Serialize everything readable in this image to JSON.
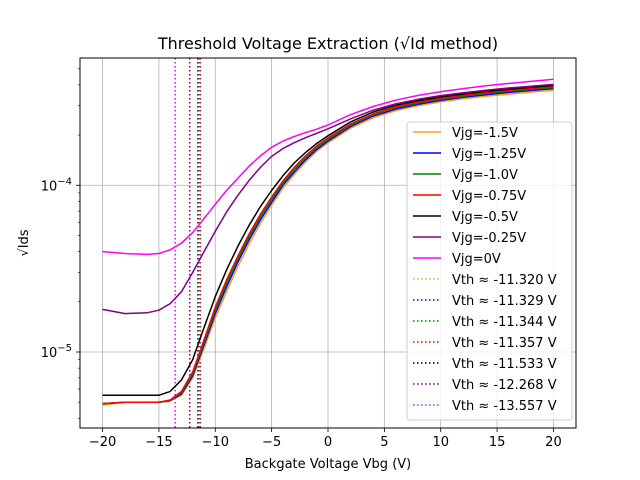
{
  "chart_data": {
    "type": "line",
    "title": "Threshold Voltage Extraction (√Id method)",
    "xlabel": "Backgate Voltage Vbg (V)",
    "ylabel": "√Ids",
    "xlim": [
      -22,
      22
    ],
    "ylim": [
      3.5e-06,
      0.00058
    ],
    "yscale": "log",
    "grid": true,
    "legend_position": "center-right",
    "x_ticks": [
      {
        "value": -20,
        "label": "−20"
      },
      {
        "value": -15,
        "label": "−15"
      },
      {
        "value": -10,
        "label": "−10"
      },
      {
        "value": -5,
        "label": "−5"
      },
      {
        "value": 0,
        "label": "0"
      },
      {
        "value": 5,
        "label": "5"
      },
      {
        "value": 10,
        "label": "10"
      },
      {
        "value": 15,
        "label": "15"
      },
      {
        "value": 20,
        "label": "20"
      }
    ],
    "y_ticks": [
      {
        "value": 1e-05,
        "base": "10",
        "exp": "−5"
      },
      {
        "value": 0.0001,
        "base": "10",
        "exp": "−4"
      }
    ],
    "x": [
      -20,
      -18,
      -16,
      -15,
      -14,
      -13,
      -12,
      -11,
      -10,
      -9,
      -8,
      -7,
      -6,
      -5,
      -4,
      -3,
      -2,
      -1,
      0,
      2,
      4,
      6,
      8,
      10,
      12,
      14,
      16,
      18,
      20
    ],
    "series": [
      {
        "name": "Vjg=-1.5V",
        "color": "#ff9f1c",
        "values": [
          4.8e-06,
          5e-06,
          5e-06,
          5e-06,
          5.1e-06,
          5.5e-06,
          7e-06,
          1.05e-05,
          1.6e-05,
          2.3e-05,
          3.25e-05,
          4.45e-05,
          5.9e-05,
          7.6e-05,
          9.6e-05,
          0.000116,
          0.000138,
          0.00016,
          0.00018,
          0.00022,
          0.000254,
          0.00028,
          0.0003,
          0.000317,
          0.00033,
          0.000342,
          0.000352,
          0.000362,
          0.000372
        ]
      },
      {
        "name": "Vjg=-1.25V",
        "color": "#0000ff",
        "values": [
          4.9e-06,
          5e-06,
          5e-06,
          5e-06,
          5.1e-06,
          5.6e-06,
          7.2e-06,
          1.1e-05,
          1.7e-05,
          2.45e-05,
          3.45e-05,
          4.7e-05,
          6.2e-05,
          7.9e-05,
          0.0001,
          0.00012,
          0.000142,
          0.000164,
          0.000184,
          0.000225,
          0.00026,
          0.000286,
          0.000306,
          0.000323,
          0.000337,
          0.000349,
          0.00036,
          0.00037,
          0.00038
        ]
      },
      {
        "name": "Vjg=-1.0V",
        "color": "#008000",
        "values": [
          4.9e-06,
          5e-06,
          5e-06,
          5e-06,
          5.1e-06,
          5.7e-06,
          7.4e-06,
          1.14e-05,
          1.78e-05,
          2.58e-05,
          3.6e-05,
          4.9e-05,
          6.45e-05,
          8.2e-05,
          0.000103,
          0.000124,
          0.000146,
          0.000168,
          0.000188,
          0.000229,
          0.000264,
          0.000291,
          0.000311,
          0.000328,
          0.000342,
          0.000355,
          0.000366,
          0.000376,
          0.000386
        ]
      },
      {
        "name": "Vjg=-0.75V",
        "color": "#ff0000",
        "values": [
          4.9e-06,
          5e-06,
          5e-06,
          5e-06,
          5.15e-06,
          5.8e-06,
          7.6e-06,
          1.18e-05,
          1.86e-05,
          2.7e-05,
          3.75e-05,
          5.1e-05,
          6.7e-05,
          8.5e-05,
          0.000106,
          0.000128,
          0.00015,
          0.000172,
          0.000192,
          0.000233,
          0.000268,
          0.000295,
          0.000316,
          0.000333,
          0.000347,
          0.00036,
          0.000371,
          0.000381,
          0.000391
        ]
      },
      {
        "name": "Vjg=-0.5V",
        "color": "#000000",
        "values": [
          5.5e-06,
          5.5e-06,
          5.5e-06,
          5.5e-06,
          5.8e-06,
          6.8e-06,
          9e-06,
          1.4e-05,
          2.15e-05,
          3.1e-05,
          4.3e-05,
          5.75e-05,
          7.45e-05,
          9.3e-05,
          0.000114,
          0.000136,
          0.000157,
          0.000178,
          0.000198,
          0.00024,
          0.000275,
          0.000302,
          0.000322,
          0.000339,
          0.000353,
          0.000366,
          0.000377,
          0.000387,
          0.000397
        ]
      },
      {
        "name": "Vjg=-0.25V",
        "color": "#800080",
        "values": [
          1.8e-05,
          1.7e-05,
          1.72e-05,
          1.78e-05,
          1.95e-05,
          2.3e-05,
          3e-05,
          4e-05,
          5.3e-05,
          6.9e-05,
          8.7e-05,
          0.000107,
          0.000128,
          0.000149,
          0.000166,
          0.00018,
          0.000193,
          0.000205,
          0.000218,
          0.00025,
          0.000282,
          0.000308,
          0.000328,
          0.000345,
          0.000359,
          0.000372,
          0.000383,
          0.000393,
          0.000403
        ]
      },
      {
        "name": "Vjg=0V",
        "color": "#ff00ff",
        "values": [
          4e-05,
          3.9e-05,
          3.85e-05,
          3.9e-05,
          4.1e-05,
          4.5e-05,
          5.2e-05,
          6.3e-05,
          7.7e-05,
          9.3e-05,
          0.00011,
          0.00013,
          0.00015,
          0.000169,
          0.000184,
          0.000196,
          0.000207,
          0.000217,
          0.00023,
          0.000265,
          0.000297,
          0.000324,
          0.000346,
          0.000364,
          0.00038,
          0.000395,
          0.000408,
          0.00042,
          0.000432
        ]
      }
    ],
    "vth_lines": [
      {
        "name": "Vth ≈ -11.320 V",
        "value": -11.32,
        "color": "#ff9f1c"
      },
      {
        "name": "Vth ≈ -11.329 V",
        "value": -11.329,
        "color": "#0000ff"
      },
      {
        "name": "Vth ≈ -11.344 V",
        "value": -11.344,
        "color": "#008000"
      },
      {
        "name": "Vth ≈ -11.357 V",
        "value": -11.357,
        "color": "#ff0000"
      },
      {
        "name": "Vth ≈ -11.533 V",
        "value": -11.533,
        "color": "#000000"
      },
      {
        "name": "Vth ≈ -12.268 V",
        "value": -12.268,
        "color": "#800080"
      },
      {
        "name": "Vth ≈ -13.557 V",
        "value": -13.557,
        "color": "#ff00ff"
      }
    ]
  }
}
